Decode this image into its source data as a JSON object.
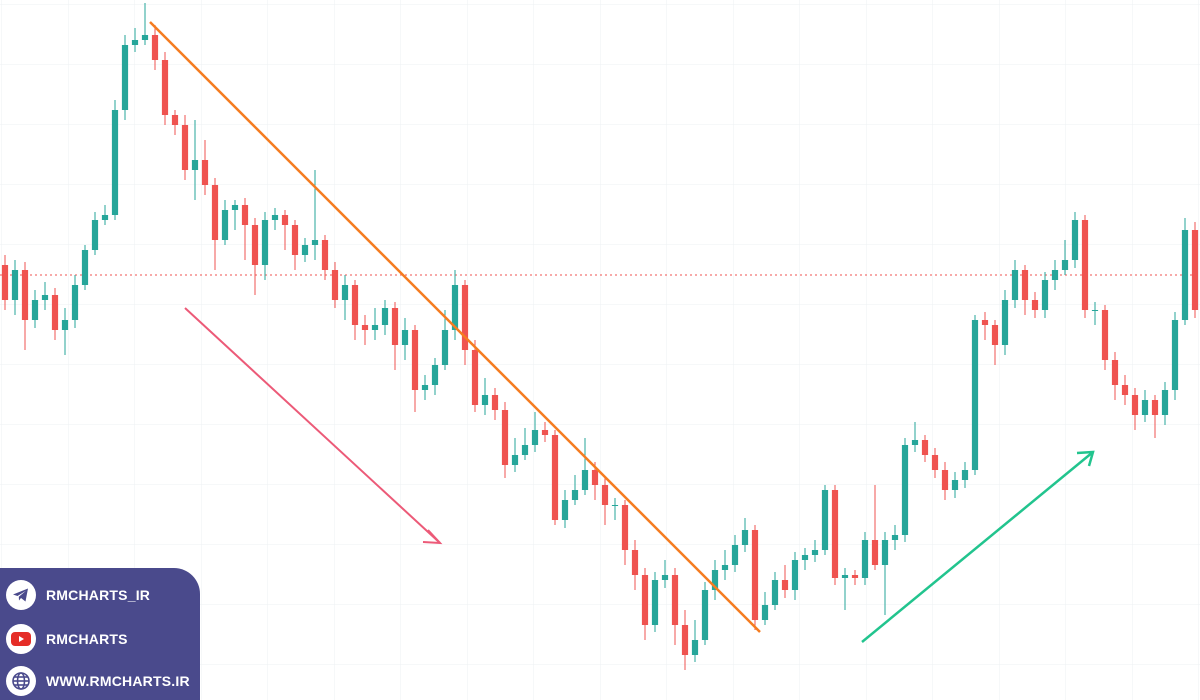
{
  "chart_data": {
    "type": "candlestick",
    "up_color": "#26a69a",
    "down_color": "#ef5350",
    "ylim": [
      0,
      700
    ],
    "open": [
      435,
      400,
      430,
      380,
      400,
      405,
      370,
      380,
      415,
      450,
      480,
      485,
      590,
      655,
      660,
      665,
      640,
      585,
      575,
      530,
      540,
      515,
      460,
      490,
      495,
      475,
      435,
      480,
      485,
      475,
      445,
      455,
      460,
      430,
      400,
      415,
      375,
      370,
      375,
      392,
      355,
      370,
      310,
      315,
      335,
      370,
      415,
      350,
      295,
      305,
      290,
      235,
      245,
      255,
      270,
      265,
      180,
      200,
      210,
      230,
      215,
      195,
      195,
      150,
      125,
      75,
      120,
      125,
      75,
      45,
      60,
      110,
      130,
      135,
      155,
      170,
      80,
      95,
      120,
      110,
      140,
      145,
      150,
      210,
      122,
      125,
      122,
      160,
      135,
      160,
      165,
      255,
      260,
      245,
      230,
      210,
      220,
      230,
      380,
      375,
      355,
      400,
      430,
      400,
      390,
      420,
      430,
      440,
      480,
      390,
      390,
      340,
      315,
      305,
      285,
      300,
      285,
      310,
      380,
      470
    ],
    "high": [
      445,
      440,
      438,
      410,
      418,
      412,
      392,
      425,
      455,
      488,
      495,
      600,
      665,
      672,
      697,
      675,
      648,
      590,
      585,
      580,
      560,
      522,
      500,
      500,
      502,
      482,
      488,
      492,
      490,
      480,
      462,
      530,
      465,
      438,
      425,
      420,
      385,
      392,
      400,
      398,
      382,
      375,
      325,
      342,
      390,
      430,
      420,
      360,
      322,
      312,
      298,
      262,
      272,
      288,
      278,
      270,
      210,
      225,
      262,
      238,
      222,
      202,
      200,
      160,
      132,
      128,
      140,
      132,
      90,
      80,
      118,
      140,
      150,
      165,
      182,
      175,
      108,
      128,
      135,
      148,
      152,
      160,
      215,
      215,
      132,
      130,
      168,
      215,
      168,
      175,
      262,
      278,
      265,
      252,
      238,
      228,
      238,
      385,
      388,
      380,
      410,
      440,
      435,
      408,
      428,
      440,
      460,
      488,
      485,
      398,
      395,
      348,
      325,
      312,
      310,
      305,
      318,
      388,
      482,
      478
    ],
    "low": [
      390,
      385,
      350,
      372,
      390,
      360,
      345,
      372,
      410,
      445,
      475,
      480,
      580,
      648,
      655,
      630,
      575,
      565,
      520,
      500,
      505,
      430,
      455,
      470,
      440,
      405,
      420,
      470,
      450,
      430,
      438,
      440,
      420,
      392,
      380,
      360,
      355,
      360,
      365,
      330,
      340,
      288,
      300,
      305,
      330,
      360,
      335,
      288,
      285,
      280,
      222,
      228,
      240,
      248,
      258,
      175,
      172,
      195,
      205,
      200,
      175,
      180,
      135,
      110,
      60,
      68,
      112,
      55,
      30,
      38,
      55,
      100,
      120,
      128,
      148,
      70,
      75,
      90,
      102,
      100,
      130,
      138,
      145,
      115,
      90,
      115,
      115,
      130,
      85,
      150,
      158,
      248,
      238,
      222,
      200,
      202,
      212,
      225,
      360,
      335,
      345,
      392,
      385,
      382,
      382,
      410,
      425,
      432,
      382,
      375,
      330,
      300,
      295,
      270,
      278,
      262,
      275,
      300,
      375,
      382
    ],
    "close": [
      400,
      430,
      380,
      400,
      405,
      370,
      380,
      415,
      450,
      480,
      485,
      590,
      655,
      660,
      665,
      640,
      585,
      575,
      530,
      540,
      515,
      460,
      490,
      495,
      475,
      435,
      480,
      485,
      475,
      445,
      455,
      460,
      430,
      400,
      415,
      375,
      370,
      375,
      392,
      355,
      370,
      310,
      315,
      335,
      370,
      415,
      350,
      295,
      305,
      290,
      235,
      245,
      255,
      270,
      265,
      180,
      200,
      210,
      230,
      215,
      195,
      195,
      150,
      125,
      75,
      120,
      125,
      75,
      45,
      60,
      110,
      130,
      135,
      155,
      170,
      80,
      95,
      120,
      110,
      140,
      145,
      150,
      210,
      122,
      125,
      122,
      160,
      135,
      160,
      165,
      255,
      260,
      245,
      230,
      210,
      220,
      230,
      380,
      375,
      355,
      400,
      430,
      400,
      390,
      420,
      430,
      440,
      480,
      390,
      390,
      340,
      315,
      305,
      285,
      300,
      285,
      310,
      380,
      470,
      390
    ]
  },
  "social": {
    "links": [
      {
        "label": "RMCHARTS_IR"
      },
      {
        "label": "RMCHARTS"
      },
      {
        "label": "WWW.RMCHARTS.IR"
      }
    ]
  }
}
